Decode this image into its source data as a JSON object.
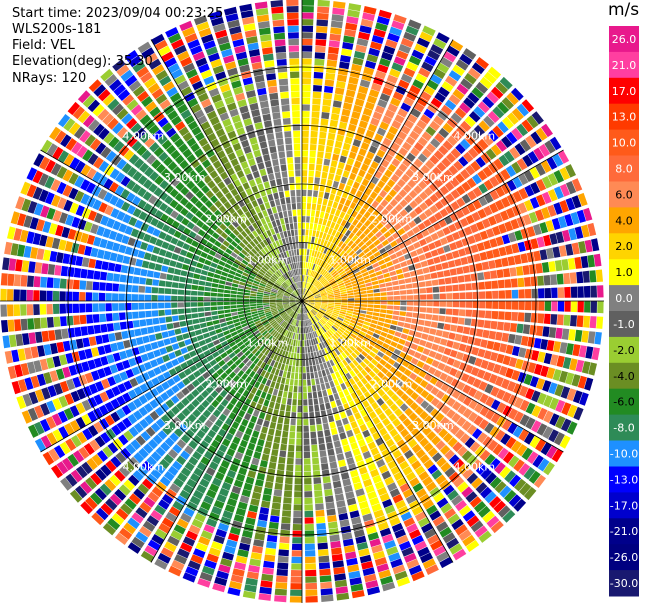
{
  "header": {
    "start_time_label": "Start time:",
    "start_time": "2023/09/04 00:23:25",
    "station": "WLS200s-181",
    "field_label": "Field:",
    "field": "VEL",
    "elevation_label": "Elevation(deg):",
    "elevation": "35.30",
    "nrays_label": "NRays:",
    "nrays": "120"
  },
  "colorbar": {
    "unit": "m/s",
    "ticks": [
      "26.0",
      "21.0",
      "17.0",
      "13.0",
      "10.0",
      "8.0",
      "6.0",
      "4.0",
      "2.0",
      "1.0",
      "0.0",
      "-1.0",
      "-2.0",
      "-4.0",
      "-6.0",
      "-8.0",
      "-10.0",
      "-13.0",
      "-17.0",
      "-21.0",
      "-26.0",
      "-30.0"
    ],
    "colors": [
      "#e8198c",
      "#ff3fa0",
      "#ff0000",
      "#ff3a00",
      "#ff5a1a",
      "#ff6a3a",
      "#ff8a55",
      "#ffa500",
      "#ffd400",
      "#ffff00",
      "#808080",
      "#606060",
      "#9acd32",
      "#6b8e23",
      "#228b22",
      "#2e8b57",
      "#1e90ff",
      "#0000ff",
      "#0000cd",
      "#00008b",
      "#000080",
      "#191970"
    ]
  },
  "chart_data": {
    "type": "heatmap",
    "projection": "polar (PPI)",
    "field": "VEL",
    "units": "m/s",
    "nrays": 120,
    "range_rings_km": [
      {
        "km": 1.0,
        "label": "1.00km"
      },
      {
        "km": 2.0,
        "label": "2.00km"
      },
      {
        "km": 3.0,
        "label": "3.00km"
      },
      {
        "km": 4.0,
        "label": "4.00km"
      }
    ],
    "max_range_km": 5.0,
    "pattern": "dipole: negative (inbound) velocities to the west, positive (outbound) to the east, noisy folded values beyond ~4 km",
    "approach_direction_deg": 270,
    "vmin": -30.0,
    "vmax": 26.0
  }
}
